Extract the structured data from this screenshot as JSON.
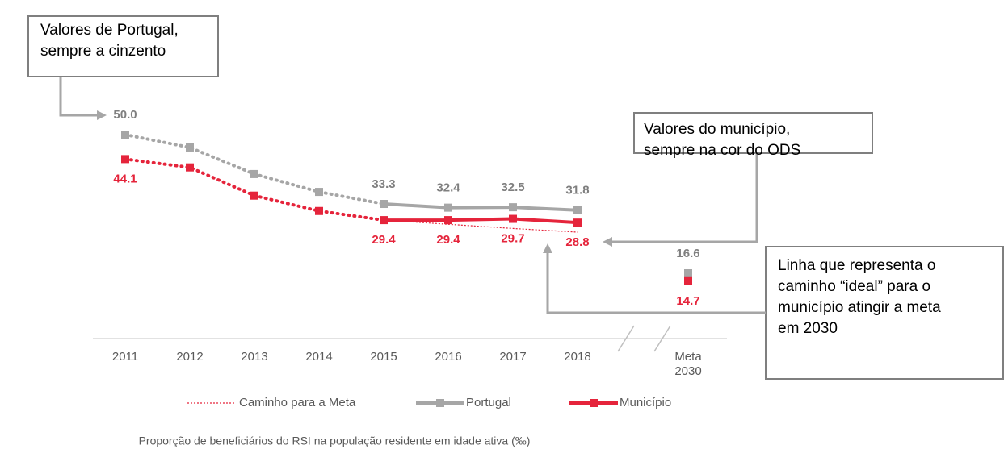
{
  "chart_data": {
    "type": "line",
    "categories": [
      "2011",
      "2012",
      "2013",
      "2014",
      "2015",
      "2016",
      "2017",
      "2018",
      "Meta 2030"
    ],
    "series": [
      {
        "name": "Caminho para a Meta",
        "color": "#e5243b",
        "values": [
          null,
          null,
          null,
          null,
          29.4,
          28.4,
          27.4,
          26.5,
          null
        ]
      },
      {
        "name": "Portugal",
        "color": "#a6a6a6",
        "values": [
          50.0,
          46.9,
          40.5,
          36.2,
          33.3,
          32.4,
          32.5,
          31.8,
          16.6
        ],
        "value_labels": [
          "50.0",
          null,
          null,
          null,
          "33.3",
          "32.4",
          "32.5",
          "31.8",
          "16.6"
        ]
      },
      {
        "name": "Município",
        "color": "#e5243b",
        "values": [
          44.1,
          42.1,
          35.3,
          31.6,
          29.4,
          29.4,
          29.7,
          28.8,
          14.7
        ],
        "value_labels": [
          "44.1",
          null,
          null,
          null,
          "29.4",
          "29.4",
          "29.7",
          "28.8",
          "14.7"
        ]
      }
    ],
    "caption": "Proporção de beneficiários do RSI na população residente em idade ativa (‰)",
    "annotations": [
      {
        "lines": [
          "Valores de Portugal,",
          "sempre a cinzento"
        ]
      },
      {
        "lines": [
          "Valores do município,",
          "sempre na cor do ODS"
        ]
      },
      {
        "lines": [
          "Linha que representa o",
          "caminho “ideal” para o",
          "município atingir a meta",
          "em 2030"
        ]
      }
    ]
  }
}
